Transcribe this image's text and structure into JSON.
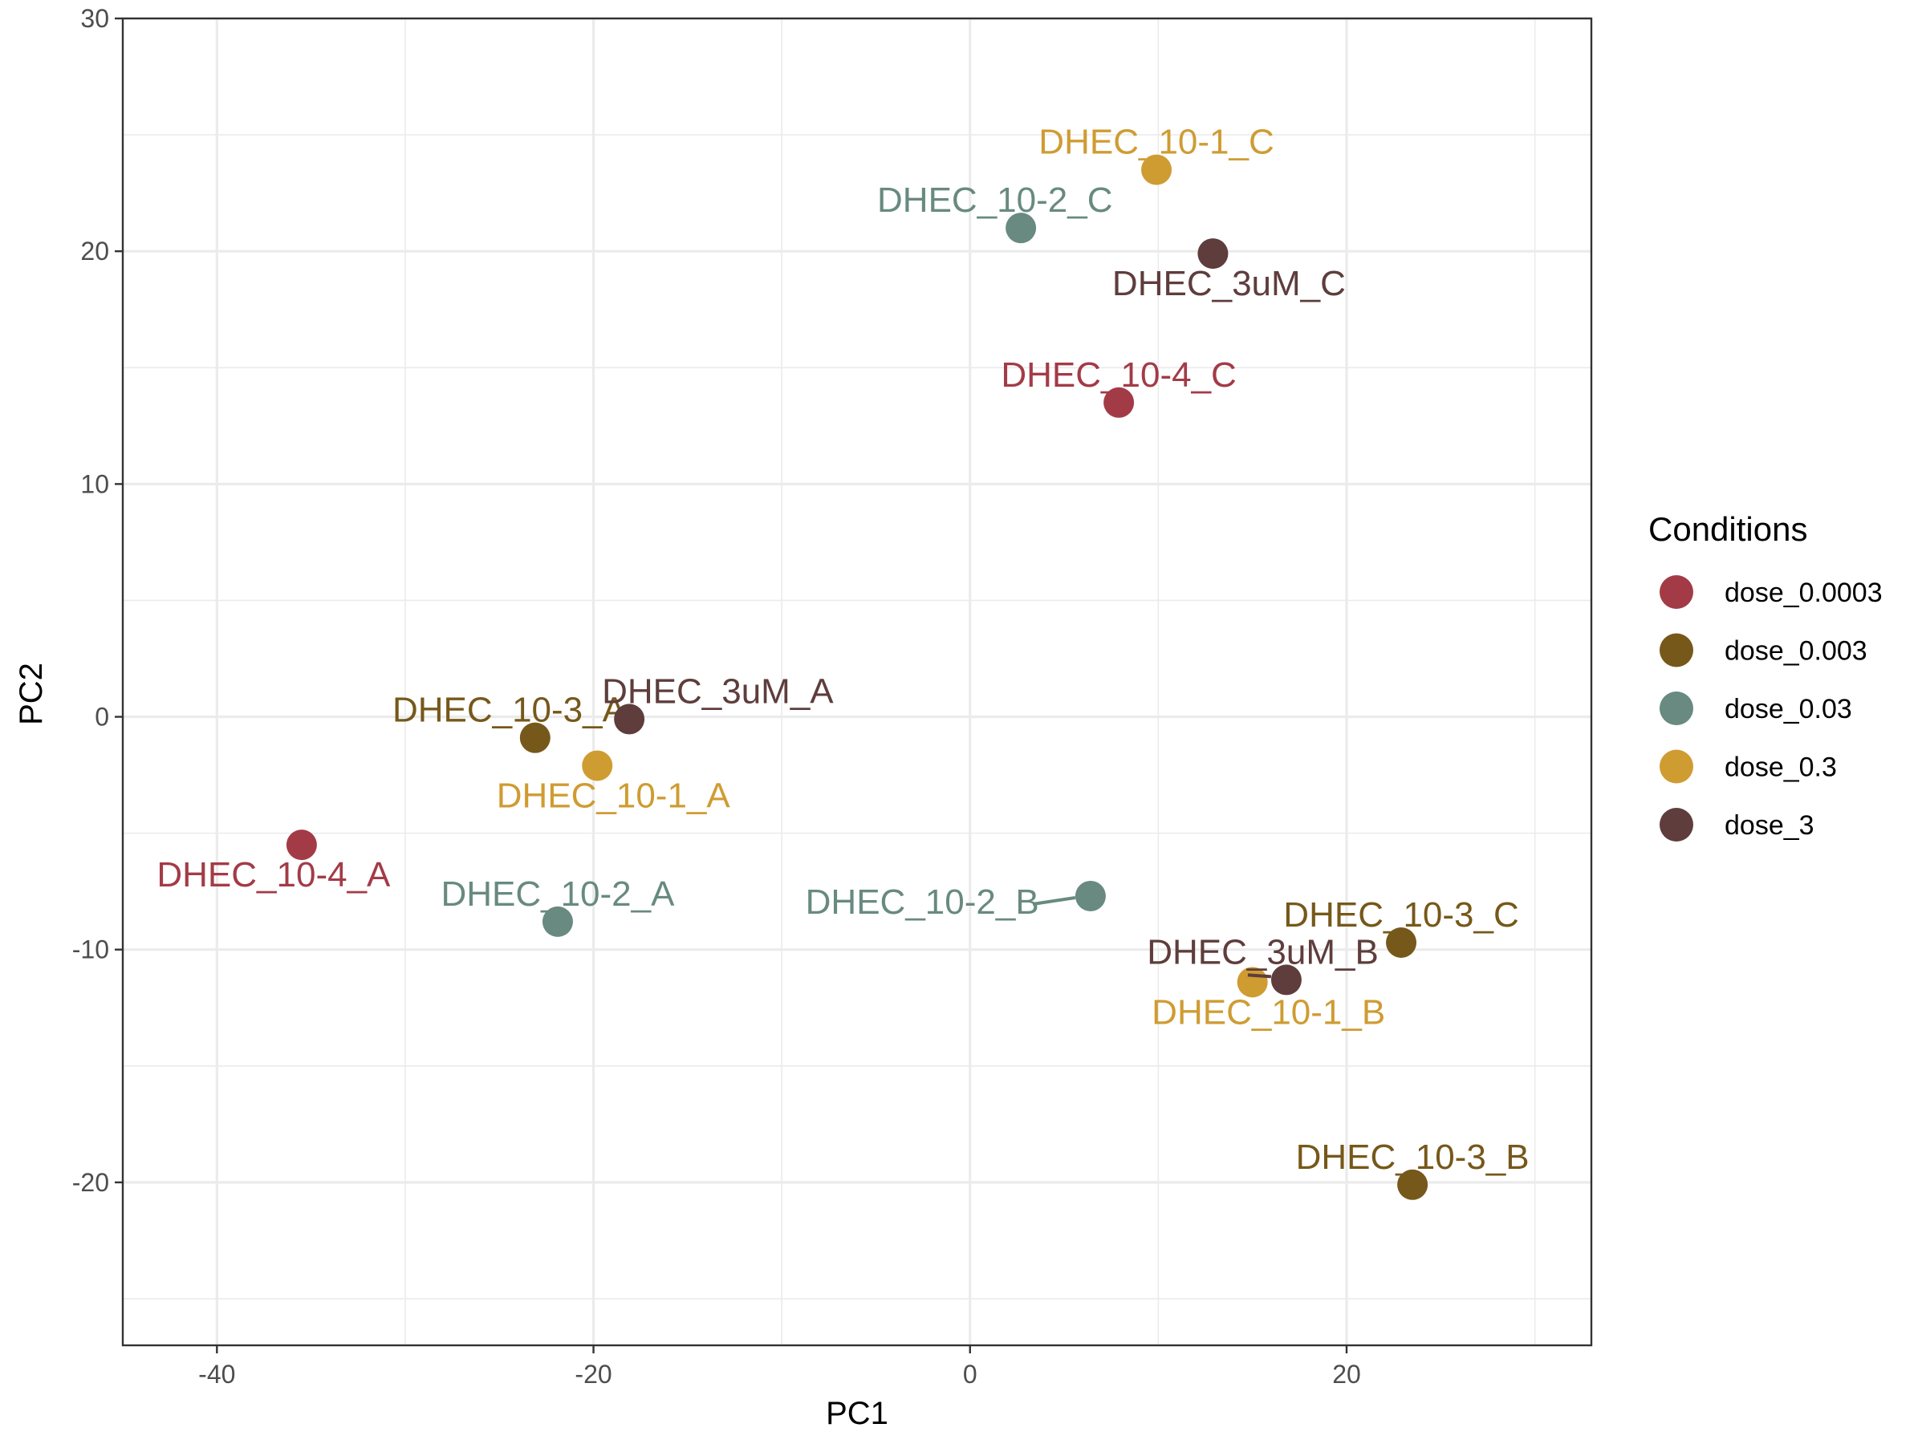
{
  "chart_data": {
    "type": "scatter",
    "title": "",
    "xlabel": "PC1",
    "ylabel": "PC2",
    "xlim": [
      -45,
      33
    ],
    "ylim": [
      -27,
      30
    ],
    "xticks": [
      -40,
      -20,
      0,
      20
    ],
    "yticks": [
      -20,
      -10,
      0,
      10,
      20,
      30
    ],
    "grid": true,
    "legend": {
      "title": "Conditions",
      "position": "right",
      "entries": [
        {
          "name": "dose_0.0003",
          "color": "#A33B47"
        },
        {
          "name": "dose_0.003",
          "color": "#76581A"
        },
        {
          "name": "dose_0.03",
          "color": "#688A80"
        },
        {
          "name": "dose_0.3",
          "color": "#CF9C32"
        },
        {
          "name": "dose_3",
          "color": "#5E3D3C"
        }
      ]
    },
    "points": [
      {
        "label": "DHEC_10-4_A",
        "group": "dose_0.0003",
        "x": -35.5,
        "y": -5.5,
        "label_pos": "below-left"
      },
      {
        "label": "DHEC_10-4_C",
        "group": "dose_0.0003",
        "x": 7.9,
        "y": 13.5,
        "label_pos": "above"
      },
      {
        "label": "DHEC_10-3_A",
        "group": "dose_0.003",
        "x": -23.1,
        "y": -0.9,
        "label_pos": "above-left"
      },
      {
        "label": "DHEC_10-3_C",
        "group": "dose_0.003",
        "x": 22.9,
        "y": -9.7,
        "label_pos": "above"
      },
      {
        "label": "DHEC_10-3_B",
        "group": "dose_0.003",
        "x": 23.5,
        "y": -20.1,
        "label_pos": "above"
      },
      {
        "label": "DHEC_10-2_C",
        "group": "dose_0.03",
        "x": 2.7,
        "y": 21.0,
        "label_pos": "above-left"
      },
      {
        "label": "DHEC_10-2_A",
        "group": "dose_0.03",
        "x": -21.9,
        "y": -8.8,
        "label_pos": "above"
      },
      {
        "label": "DHEC_10-2_B",
        "group": "dose_0.03",
        "x": 6.4,
        "y": -7.7,
        "label_pos": "left"
      },
      {
        "label": "DHEC_10-1_C",
        "group": "dose_0.3",
        "x": 9.9,
        "y": 23.5,
        "label_pos": "above"
      },
      {
        "label": "DHEC_10-1_A",
        "group": "dose_0.3",
        "x": -19.8,
        "y": -2.1,
        "label_pos": "below"
      },
      {
        "label": "DHEC_10-1_B",
        "group": "dose_0.3",
        "x": 15.0,
        "y": -11.4,
        "label_pos": "below"
      },
      {
        "label": "DHEC_3uM_C",
        "group": "dose_3",
        "x": 12.9,
        "y": 19.9,
        "label_pos": "below"
      },
      {
        "label": "DHEC_3uM_A",
        "group": "dose_3",
        "x": -18.1,
        "y": -0.1,
        "label_pos": "above-right"
      },
      {
        "label": "DHEC_3uM_B",
        "group": "dose_3",
        "x": 16.8,
        "y": -11.3,
        "label_pos": "above-left"
      }
    ]
  }
}
